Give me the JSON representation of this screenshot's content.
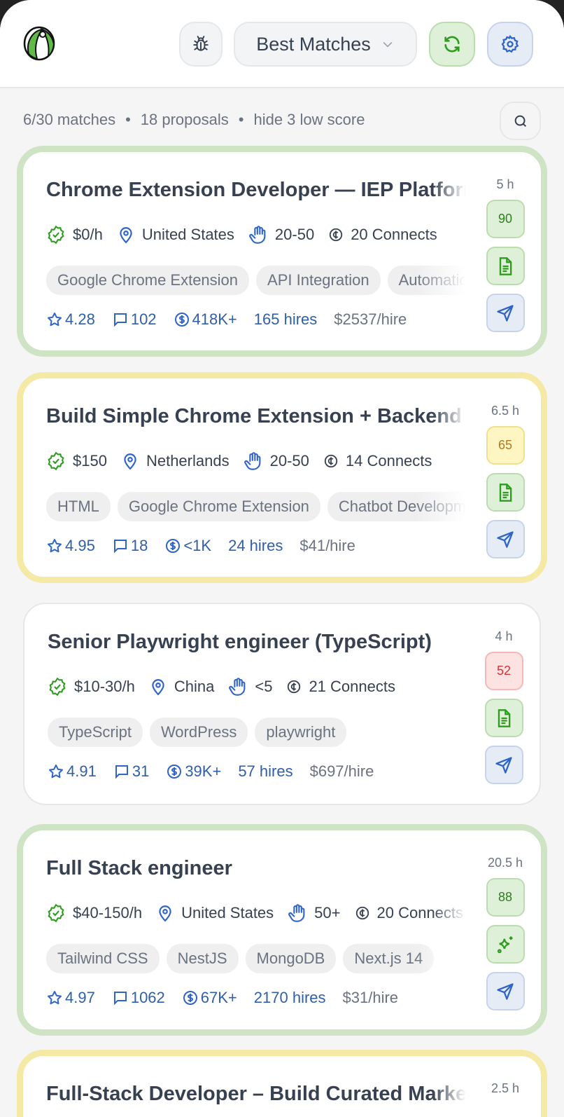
{
  "header": {
    "sort_label": "Best Matches",
    "icons": [
      "beach-ball-logo",
      "bug-icon",
      "chevron-down-icon",
      "refresh-icon",
      "gear-icon"
    ]
  },
  "summary": {
    "matches": "6/30 matches",
    "proposals": "18 proposals",
    "hide": "hide 3 low score",
    "separator": "•"
  },
  "colors": {
    "green_border": "#cfe3c5",
    "yellow_border": "#f5e9a6",
    "accent_blue": "#2f5fa8",
    "accent_green": "#2e7d1f"
  },
  "jobs": [
    {
      "title": "Chrome Extension Developer — IEP Platform",
      "rate": "$0/h",
      "location": "United States",
      "proposals": "20-50",
      "connects": "20 Connects",
      "tags": [
        "Google Chrome Extension",
        "API Integration",
        "Automation"
      ],
      "rating": "4.28",
      "reviews": "102",
      "spent": "418K+",
      "hires": "165 hires",
      "per_hire": "$2537/hire",
      "time": "5 h",
      "score": "90",
      "score_level": "high",
      "action_icon": "document-icon",
      "border": "green"
    },
    {
      "title": "Build Simple Chrome Extension + Backend",
      "rate": "$150",
      "location": "Netherlands",
      "proposals": "20-50",
      "connects": "14 Connects",
      "tags": [
        "HTML",
        "Google Chrome Extension",
        "Chatbot Development"
      ],
      "rating": "4.95",
      "reviews": "18",
      "spent": "<1K",
      "hires": "24 hires",
      "per_hire": "$41/hire",
      "time": "6.5 h",
      "score": "65",
      "score_level": "mid",
      "action_icon": "document-icon",
      "border": "yellow"
    },
    {
      "title": "Senior Playwright engineer (TypeScript)",
      "rate": "$10-30/h",
      "location": "China",
      "proposals": "<5",
      "connects": "21 Connects",
      "tags": [
        "TypeScript",
        "WordPress",
        "playwright"
      ],
      "rating": "4.91",
      "reviews": "31",
      "spent": "39K+",
      "hires": "57 hires",
      "per_hire": "$697/hire",
      "time": "4 h",
      "score": "52",
      "score_level": "low",
      "action_icon": "document-icon",
      "border": "plain"
    },
    {
      "title": "Full Stack engineer",
      "rate": "$40-150/h",
      "location": "United States",
      "proposals": "50+",
      "connects": "20 Connects",
      "tags": [
        "Tailwind CSS",
        "NestJS",
        "MongoDB",
        "Next.js 14"
      ],
      "rating": "4.97",
      "reviews": "1062",
      "spent": "67K+",
      "hires": "2170 hires",
      "per_hire": "$31/hire",
      "time": "20.5 h",
      "score": "88",
      "score_level": "high",
      "action_icon": "sparkle-icon",
      "border": "green"
    },
    {
      "title": "Full-Stack Developer – Build Curated Marketplace",
      "time": "2.5 h",
      "border": "yellow"
    }
  ]
}
